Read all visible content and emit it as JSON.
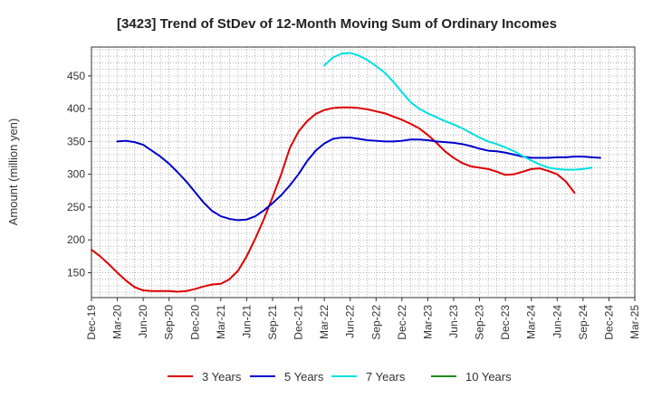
{
  "chart_data": {
    "type": "line",
    "title": "[3423]  Trend of StDev of 12-Month Moving Sum of Ordinary Incomes",
    "xlabel": "",
    "ylabel": "Amount (million yen)",
    "ylim": [
      112,
      494
    ],
    "yticks": [
      150,
      200,
      250,
      300,
      350,
      400,
      450
    ],
    "grid": true,
    "legend_position": "bottom",
    "x_ticks": [
      "Dec-19",
      "Mar-20",
      "Jun-20",
      "Sep-20",
      "Dec-20",
      "Mar-21",
      "Jun-21",
      "Sep-21",
      "Dec-21",
      "Mar-22",
      "Jun-22",
      "Sep-22",
      "Dec-22",
      "Mar-23",
      "Jun-23",
      "Sep-23",
      "Dec-23",
      "Mar-24",
      "Jun-24",
      "Sep-24",
      "Dec-24",
      "Mar-25"
    ],
    "series": [
      {
        "name": "3 Years",
        "color": "#dd0000",
        "start_month": 0,
        "values": [
          185,
          175,
          163,
          150,
          138,
          128,
          123,
          122,
          122,
          122,
          121,
          122,
          125,
          129,
          132,
          133,
          140,
          153,
          175,
          202,
          232,
          265,
          300,
          340,
          365,
          381,
          392,
          398,
          401,
          402,
          402,
          401,
          399,
          396,
          393,
          388,
          383,
          377,
          370,
          360,
          348,
          335,
          325,
          317,
          312,
          310,
          308,
          304,
          299,
          300,
          304,
          308,
          309,
          305,
          300,
          289,
          272
        ]
      },
      {
        "name": "5 Years",
        "color": "#0000cc",
        "start_month": 3,
        "values": [
          350,
          351,
          349,
          345,
          336,
          327,
          316,
          303,
          289,
          273,
          257,
          244,
          236,
          232,
          230,
          231,
          236,
          245,
          256,
          268,
          283,
          300,
          320,
          336,
          347,
          354,
          356,
          356,
          354,
          352,
          351,
          350,
          350,
          351,
          353,
          353,
          352,
          350,
          349,
          348,
          346,
          343,
          339,
          336,
          335,
          333,
          330,
          327,
          325,
          325,
          325,
          326,
          326,
          327,
          327,
          326,
          325
        ]
      },
      {
        "name": "7 Years",
        "color": "#00e0e0",
        "start_month": 27,
        "values": [
          466,
          478,
          484,
          485,
          481,
          474,
          465,
          455,
          441,
          425,
          410,
          400,
          393,
          387,
          381,
          376,
          370,
          363,
          356,
          350,
          346,
          341,
          335,
          328,
          321,
          315,
          310,
          308,
          307,
          307,
          308,
          310
        ]
      },
      {
        "name": "10 Years",
        "color": "#228822",
        "start_month": 0,
        "values": []
      }
    ]
  }
}
